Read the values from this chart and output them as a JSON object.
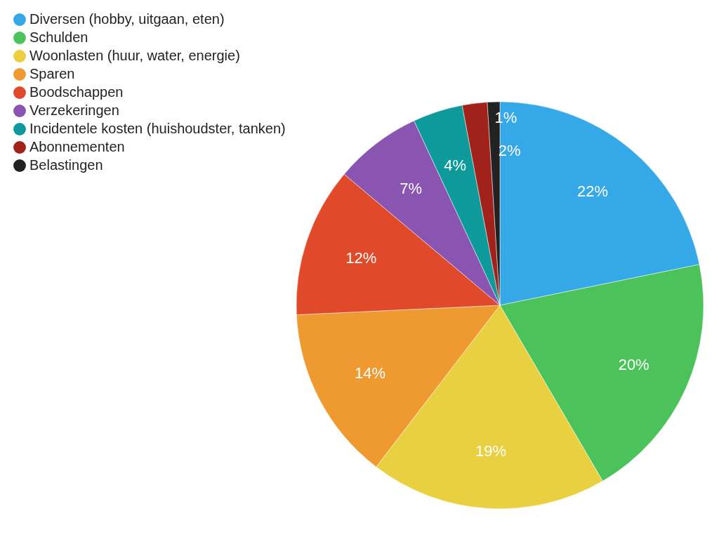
{
  "chart_data": {
    "type": "pie",
    "categories": [
      "Diversen (hobby, uitgaan, eten)",
      "Schulden",
      "Woonlasten (huur, water, energie)",
      "Sparen",
      "Boodschappen",
      "Verzekeringen",
      "Incidentele kosten (huishoudster, tanken)",
      "Abonnementen",
      "Belastingen"
    ],
    "values": [
      22,
      20,
      19,
      14,
      12,
      7,
      4,
      2,
      1
    ],
    "value_labels": [
      "22%",
      "20%",
      "19%",
      "14%",
      "12%",
      "7%",
      "4%",
      "2%",
      "1%"
    ],
    "colors": [
      "#35a8e8",
      "#4cc35a",
      "#e8d040",
      "#ee9a30",
      "#e04a2a",
      "#8a55b0",
      "#0e9a9a",
      "#a0221a",
      "#222222"
    ],
    "legend": "top left"
  }
}
